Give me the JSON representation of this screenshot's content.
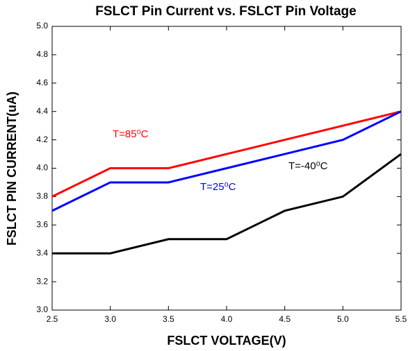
{
  "chart_data": {
    "type": "line",
    "title": "FSLCT Pin Current vs. FSLCT Pin Voltage",
    "x_label": "FSLCT VOLTAGE(V)",
    "y_label": "FSLCT PIN CURRENT(uA)",
    "x": [
      2.5,
      3.0,
      3.5,
      4.0,
      4.5,
      5.0,
      5.5
    ],
    "series": [
      {
        "name": "T=85⁰C",
        "color": "#ff0000",
        "values": [
          3.8,
          4.0,
          4.0,
          4.1,
          4.2,
          4.3,
          4.4
        ]
      },
      {
        "name": "T=25⁰C",
        "color": "#0000ff",
        "values": [
          3.7,
          3.9,
          3.9,
          4.0,
          4.1,
          4.2,
          4.4
        ]
      },
      {
        "name": "T=-40⁰C",
        "color": "#000000",
        "values": [
          3.4,
          3.4,
          3.5,
          3.5,
          3.7,
          3.8,
          4.1
        ]
      }
    ],
    "xlim": [
      2.5,
      5.5
    ],
    "xticks": [
      2.5,
      {
        "value": 3,
        "label": "3.0"
      },
      3.5,
      {
        "value": 4,
        "label": "4.0"
      },
      4.5,
      {
        "value": 5,
        "label": "5.0"
      },
      5.5
    ],
    "ylim": [
      3,
      5
    ],
    "yticks": [
      {
        "value": 3,
        "label": "3.0"
      },
      3.2,
      3.4,
      3.6,
      3.8,
      {
        "value": 4,
        "label": "4.0"
      },
      4.2,
      4.4,
      4.6,
      4.8,
      {
        "value": 5,
        "label": "5.0"
      }
    ],
    "grid": false
  }
}
